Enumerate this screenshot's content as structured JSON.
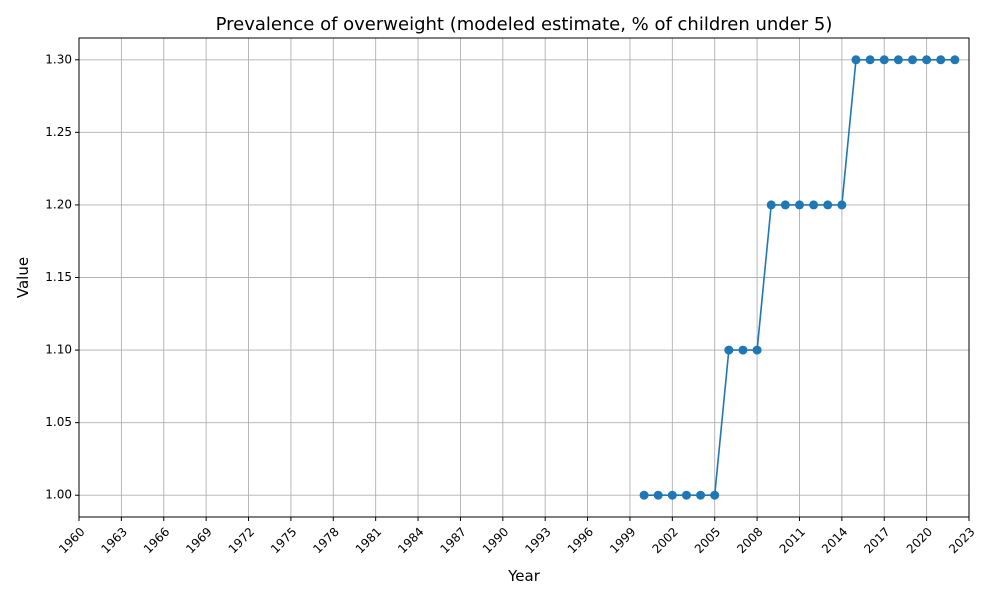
{
  "chart_data": {
    "type": "line",
    "title": "Prevalence of overweight (modeled estimate, % of children under 5)",
    "xlabel": "Year",
    "ylabel": "Value",
    "xlim": [
      1960,
      2023
    ],
    "ylim": [
      0.985,
      1.315
    ],
    "grid": true,
    "x_ticks": [
      1960,
      1963,
      1966,
      1969,
      1972,
      1975,
      1978,
      1981,
      1984,
      1987,
      1990,
      1993,
      1996,
      1999,
      2002,
      2005,
      2008,
      2011,
      2014,
      2017,
      2020,
      2023
    ],
    "y_ticks": [
      "1.00",
      "1.05",
      "1.10",
      "1.15",
      "1.20",
      "1.25",
      "1.30"
    ],
    "series": [
      {
        "color": "#1f77b4",
        "marker": "circle",
        "x": [
          2000,
          2001,
          2002,
          2003,
          2004,
          2005,
          2006,
          2007,
          2008,
          2009,
          2010,
          2011,
          2012,
          2013,
          2014,
          2015,
          2016,
          2017,
          2018,
          2019,
          2020,
          2021,
          2022
        ],
        "y": [
          1.0,
          1.0,
          1.0,
          1.0,
          1.0,
          1.0,
          1.1,
          1.1,
          1.1,
          1.2,
          1.2,
          1.2,
          1.2,
          1.2,
          1.2,
          1.3,
          1.3,
          1.3,
          1.3,
          1.3,
          1.3,
          1.3,
          1.3
        ]
      }
    ]
  }
}
